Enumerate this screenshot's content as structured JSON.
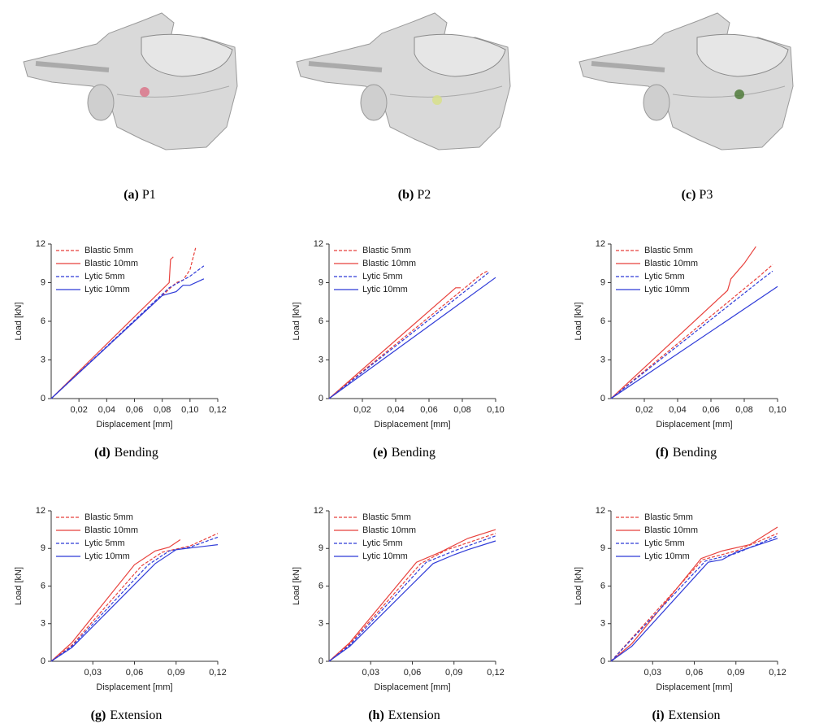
{
  "figures": [
    {
      "label": "(a)",
      "caption": "P1"
    },
    {
      "label": "(b)",
      "caption": "P2"
    },
    {
      "label": "(c)",
      "caption": "P3"
    }
  ],
  "chart_data": [
    {
      "type": "line",
      "label": "(d)",
      "caption": "Bending",
      "x_label": "Displacement [mm]",
      "y_label": "Load [kN]",
      "xlim": [
        0,
        0.12
      ],
      "xticks": [
        {
          "value": 0.02,
          "label": "0,02"
        },
        {
          "value": 0.04,
          "label": "0,04"
        },
        {
          "value": 0.06,
          "label": "0,06"
        },
        {
          "value": 0.08,
          "label": "0,08"
        },
        {
          "value": 0.1,
          "label": "0,10"
        },
        {
          "value": 0.12,
          "label": "0,12"
        }
      ],
      "ylim": [
        0,
        12
      ],
      "yticks": [
        0,
        3,
        6,
        9,
        12
      ],
      "series": [
        {
          "name": "Blastic 5mm",
          "color": "#e8413c",
          "dash": true,
          "x": [
            0,
            0.09,
            0.095,
            0.1,
            0.104
          ],
          "values": [
            0,
            9.0,
            9.2,
            10.0,
            11.7
          ]
        },
        {
          "name": "Blastic 10mm",
          "color": "#e8413c",
          "dash": false,
          "x": [
            0,
            0.085,
            0.086,
            0.088
          ],
          "values": [
            0,
            9.0,
            10.8,
            11.0
          ]
        },
        {
          "name": "Lytic 5mm",
          "color": "#2f3bd8",
          "dash": true,
          "x": [
            0,
            0.085,
            0.1,
            0.11
          ],
          "values": [
            0,
            8.6,
            9.5,
            10.3
          ]
        },
        {
          "name": "Lytic 10mm",
          "color": "#2f3bd8",
          "dash": false,
          "x": [
            0,
            0.08,
            0.09,
            0.095,
            0.1,
            0.11
          ],
          "values": [
            0,
            8.0,
            8.3,
            8.8,
            8.8,
            9.3
          ]
        }
      ]
    },
    {
      "type": "line",
      "label": "(e)",
      "caption": "Bending",
      "x_label": "Displacement [mm]",
      "y_label": "Load [kN]",
      "xlim": [
        0,
        0.1
      ],
      "xticks": [
        {
          "value": 0.02,
          "label": "0,02"
        },
        {
          "value": 0.04,
          "label": "0,04"
        },
        {
          "value": 0.06,
          "label": "0,06"
        },
        {
          "value": 0.08,
          "label": "0,08"
        },
        {
          "value": 0.1,
          "label": "0,10"
        }
      ],
      "ylim": [
        0,
        12
      ],
      "yticks": [
        0,
        3,
        6,
        9,
        12
      ],
      "series": [
        {
          "name": "Blastic 5mm",
          "color": "#e8413c",
          "dash": true,
          "x": [
            0,
            0.092,
            0.095
          ],
          "values": [
            0,
            9.7,
            9.9
          ]
        },
        {
          "name": "Blastic 10mm",
          "color": "#e8413c",
          "dash": false,
          "x": [
            0,
            0.076,
            0.079
          ],
          "values": [
            0,
            8.6,
            8.6
          ]
        },
        {
          "name": "Lytic 5mm",
          "color": "#2f3bd8",
          "dash": true,
          "x": [
            0,
            0.096
          ],
          "values": [
            0,
            9.8
          ]
        },
        {
          "name": "Lytic 10mm",
          "color": "#2f3bd8",
          "dash": false,
          "x": [
            0,
            0.1
          ],
          "values": [
            0,
            9.4
          ]
        }
      ]
    },
    {
      "type": "line",
      "label": "(f)",
      "caption": "Bending",
      "x_label": "Displacement [mm]",
      "y_label": "Load [kN]",
      "xlim": [
        0,
        0.1
      ],
      "xticks": [
        {
          "value": 0.02,
          "label": "0,02"
        },
        {
          "value": 0.04,
          "label": "0,04"
        },
        {
          "value": 0.06,
          "label": "0,06"
        },
        {
          "value": 0.08,
          "label": "0,08"
        },
        {
          "value": 0.1,
          "label": "0,10"
        }
      ],
      "ylim": [
        0,
        12
      ],
      "yticks": [
        0,
        3,
        6,
        9,
        12
      ],
      "series": [
        {
          "name": "Blastic 5mm",
          "color": "#e8413c",
          "dash": true,
          "x": [
            0,
            0.09,
            0.097
          ],
          "values": [
            0,
            9.6,
            10.4
          ]
        },
        {
          "name": "Blastic 10mm",
          "color": "#e8413c",
          "dash": false,
          "x": [
            0,
            0.07,
            0.072,
            0.08,
            0.087
          ],
          "values": [
            0,
            8.4,
            9.3,
            10.5,
            11.8
          ]
        },
        {
          "name": "Lytic 5mm",
          "color": "#2f3bd8",
          "dash": true,
          "x": [
            0,
            0.09,
            0.097
          ],
          "values": [
            0,
            9.2,
            9.9
          ]
        },
        {
          "name": "Lytic 10mm",
          "color": "#2f3bd8",
          "dash": false,
          "x": [
            0,
            0.1
          ],
          "values": [
            0,
            8.7
          ]
        }
      ]
    },
    {
      "type": "line",
      "label": "(g)",
      "caption": "Extension",
      "x_label": "Displacement [mm]",
      "y_label": "Load [kN]",
      "xlim": [
        0,
        0.12
      ],
      "xticks": [
        {
          "value": 0.03,
          "label": "0,03"
        },
        {
          "value": 0.06,
          "label": "0,06"
        },
        {
          "value": 0.09,
          "label": "0,09"
        },
        {
          "value": 0.12,
          "label": "0,12"
        }
      ],
      "ylim": [
        0,
        12
      ],
      "yticks": [
        0,
        3,
        6,
        9,
        12
      ],
      "series": [
        {
          "name": "Blastic 5mm",
          "color": "#e8413c",
          "dash": true,
          "x": [
            0,
            0.015,
            0.065,
            0.08,
            0.1,
            0.12
          ],
          "values": [
            0,
            1.3,
            7.6,
            8.7,
            9.2,
            10.2
          ]
        },
        {
          "name": "Blastic 10mm",
          "color": "#e8413c",
          "dash": false,
          "x": [
            0,
            0.015,
            0.06,
            0.075,
            0.085,
            0.093
          ],
          "values": [
            0,
            1.5,
            7.7,
            8.8,
            9.1,
            9.7
          ]
        },
        {
          "name": "Lytic 5mm",
          "color": "#2f3bd8",
          "dash": true,
          "x": [
            0,
            0.015,
            0.07,
            0.085,
            0.1,
            0.12
          ],
          "values": [
            0,
            1.2,
            7.7,
            8.8,
            9.1,
            9.9
          ]
        },
        {
          "name": "Lytic 10mm",
          "color": "#2f3bd8",
          "dash": false,
          "x": [
            0,
            0.015,
            0.075,
            0.09,
            0.105,
            0.12
          ],
          "values": [
            0,
            1.1,
            7.8,
            8.9,
            9.1,
            9.3
          ]
        }
      ]
    },
    {
      "type": "line",
      "label": "(h)",
      "caption": "Extension",
      "x_label": "Displacement [mm]",
      "y_label": "Load [kN]",
      "xlim": [
        0,
        0.12
      ],
      "xticks": [
        {
          "value": 0.03,
          "label": "0,03"
        },
        {
          "value": 0.06,
          "label": "0,06"
        },
        {
          "value": 0.09,
          "label": "0,09"
        },
        {
          "value": 0.12,
          "label": "0,12"
        }
      ],
      "ylim": [
        0,
        12
      ],
      "yticks": [
        0,
        3,
        6,
        9,
        12
      ],
      "series": [
        {
          "name": "Blastic 5mm",
          "color": "#e8413c",
          "dash": true,
          "x": [
            0,
            0.015,
            0.066,
            0.085,
            0.12
          ],
          "values": [
            0,
            1.4,
            7.8,
            8.9,
            10.2
          ]
        },
        {
          "name": "Blastic 10mm",
          "color": "#e8413c",
          "dash": false,
          "x": [
            0,
            0.015,
            0.063,
            0.08,
            0.1,
            0.12
          ],
          "values": [
            0,
            1.5,
            7.9,
            8.7,
            9.8,
            10.5
          ]
        },
        {
          "name": "Lytic 5mm",
          "color": "#2f3bd8",
          "dash": true,
          "x": [
            0,
            0.015,
            0.07,
            0.09,
            0.12
          ],
          "values": [
            0,
            1.3,
            7.9,
            8.8,
            10.0
          ]
        },
        {
          "name": "Lytic 10mm",
          "color": "#2f3bd8",
          "dash": false,
          "x": [
            0,
            0.015,
            0.075,
            0.09,
            0.1,
            0.12
          ],
          "values": [
            0,
            1.2,
            7.8,
            8.5,
            8.9,
            9.6
          ]
        }
      ]
    },
    {
      "type": "line",
      "label": "(i)",
      "caption": "Extension",
      "x_label": "Displacement [mm]",
      "y_label": "Load [kN]",
      "xlim": [
        0,
        0.12
      ],
      "xticks": [
        {
          "value": 0.03,
          "label": "0,03"
        },
        {
          "value": 0.06,
          "label": "0,06"
        },
        {
          "value": 0.09,
          "label": "0,09"
        },
        {
          "value": 0.12,
          "label": "0,12"
        }
      ],
      "ylim": [
        0,
        12
      ],
      "yticks": [
        0,
        3,
        6,
        9,
        12
      ],
      "series": [
        {
          "name": "Blastic 5mm",
          "color": "#e8413c",
          "dash": true,
          "x": [
            0,
            0.066,
            0.09,
            0.12
          ],
          "values": [
            0,
            8.1,
            8.8,
            10.2
          ]
        },
        {
          "name": "Blastic 10mm",
          "color": "#e8413c",
          "dash": false,
          "x": [
            0,
            0.015,
            0.065,
            0.08,
            0.1,
            0.12
          ],
          "values": [
            0,
            1.4,
            8.2,
            8.8,
            9.3,
            10.7
          ]
        },
        {
          "name": "Lytic 5mm",
          "color": "#2f3bd8",
          "dash": true,
          "x": [
            0,
            0.068,
            0.09,
            0.12
          ],
          "values": [
            0,
            8.0,
            8.6,
            10.0
          ]
        },
        {
          "name": "Lytic 10mm",
          "color": "#2f3bd8",
          "dash": false,
          "x": [
            0,
            0.015,
            0.07,
            0.08,
            0.09,
            0.12
          ],
          "values": [
            0,
            1.2,
            7.9,
            8.1,
            8.7,
            9.8
          ]
        }
      ]
    }
  ]
}
